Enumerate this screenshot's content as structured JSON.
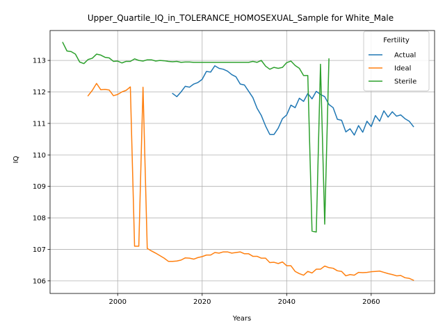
{
  "chart_data": {
    "type": "line",
    "title": "Upper_Quartile_IQ_in_TOLERANCE_HOMOSEXUAL_Sample for White_Male",
    "xlabel": "Years",
    "ylabel": "IQ",
    "xlim": [
      1984,
      2075
    ],
    "ylim": [
      105.6,
      113.95
    ],
    "xticks": [
      2000,
      2020,
      2040,
      2060
    ],
    "yticks": [
      106,
      107,
      108,
      109,
      110,
      111,
      112,
      113
    ],
    "grid": true,
    "legend": {
      "title": "Fertility",
      "position": "top-right"
    },
    "series": [
      {
        "name": "Actual",
        "color": "#1f77b4",
        "x": [
          2013,
          2014,
          2015,
          2016,
          2017,
          2018,
          2019,
          2020,
          2021,
          2022,
          2023,
          2024,
          2025,
          2026,
          2027,
          2028,
          2029,
          2030,
          2031,
          2032,
          2033,
          2034,
          2035,
          2036,
          2037,
          2038,
          2039,
          2040,
          2041,
          2042,
          2043,
          2044,
          2045,
          2046,
          2047,
          2048,
          2049,
          2050,
          2051,
          2052,
          2053,
          2054,
          2055,
          2056,
          2057,
          2058,
          2059,
          2060,
          2061,
          2062,
          2063,
          2064,
          2065,
          2066,
          2067,
          2068,
          2069,
          2070
        ],
        "y": [
          111.95,
          111.85,
          112.0,
          112.18,
          112.15,
          112.25,
          112.3,
          112.4,
          112.65,
          112.63,
          112.83,
          112.75,
          112.72,
          112.66,
          112.55,
          112.48,
          112.25,
          112.22,
          112.02,
          111.82,
          111.48,
          111.25,
          110.92,
          110.65,
          110.65,
          110.85,
          111.15,
          111.27,
          111.58,
          111.5,
          111.8,
          111.7,
          111.95,
          111.78,
          112.02,
          111.92,
          111.85,
          111.6,
          111.5,
          111.13,
          111.1,
          110.73,
          110.83,
          110.63,
          110.93,
          110.72,
          111.07,
          110.9,
          111.25,
          111.07,
          111.4,
          111.2,
          111.37,
          111.23,
          111.27,
          111.15,
          111.07,
          110.9
        ]
      },
      {
        "name": "Ideal",
        "color": "#ff7f0e",
        "x": [
          1993,
          1994,
          1995,
          1996,
          1997,
          1998,
          1999,
          2000,
          2001,
          2002,
          2003,
          2004,
          2005,
          2006,
          2007,
          2008,
          2009,
          2010,
          2011,
          2012,
          2013,
          2014,
          2015,
          2016,
          2017,
          2018,
          2019,
          2020,
          2021,
          2022,
          2023,
          2024,
          2025,
          2026,
          2027,
          2028,
          2029,
          2030,
          2031,
          2032,
          2033,
          2034,
          2035,
          2036,
          2037,
          2038,
          2039,
          2040,
          2041,
          2042,
          2043,
          2044,
          2045,
          2046,
          2047,
          2048,
          2049,
          2050,
          2051,
          2052,
          2053,
          2054,
          2055,
          2056,
          2057,
          2058,
          2059,
          2060,
          2061,
          2062,
          2063,
          2064,
          2065,
          2066,
          2067,
          2068,
          2069,
          2070
        ],
        "y": [
          111.88,
          112.05,
          112.27,
          112.07,
          112.08,
          112.06,
          111.88,
          111.92,
          112.0,
          112.05,
          112.16,
          107.1,
          107.1,
          112.15,
          107.03,
          106.95,
          106.88,
          106.8,
          106.72,
          106.62,
          106.62,
          106.63,
          106.66,
          106.73,
          106.72,
          106.69,
          106.74,
          106.77,
          106.82,
          106.82,
          106.9,
          106.88,
          106.92,
          106.92,
          106.88,
          106.9,
          106.92,
          106.86,
          106.86,
          106.78,
          106.78,
          106.72,
          106.72,
          106.58,
          106.59,
          106.55,
          106.6,
          106.48,
          106.48,
          106.3,
          106.23,
          106.18,
          106.3,
          106.25,
          106.37,
          106.37,
          106.47,
          106.42,
          106.4,
          106.32,
          106.3,
          106.16,
          106.2,
          106.18,
          106.27,
          106.26,
          106.27,
          106.29,
          106.3,
          106.31,
          106.27,
          106.23,
          106.2,
          106.16,
          106.17,
          106.1,
          106.08,
          106.02
        ]
      },
      {
        "name": "Sterile",
        "color": "#2ca02c",
        "x": [
          1987,
          1988,
          1989,
          1990,
          1991,
          1992,
          1993,
          1994,
          1995,
          1996,
          1997,
          1998,
          1999,
          2000,
          2001,
          2002,
          2003,
          2004,
          2005,
          2006,
          2007,
          2008,
          2009,
          2010,
          2011,
          2012,
          2013,
          2014,
          2015,
          2016,
          2017,
          2018,
          2019,
          2020,
          2021,
          2022,
          2023,
          2024,
          2025,
          2026,
          2027,
          2028,
          2029,
          2030,
          2031,
          2032,
          2033,
          2034,
          2035,
          2036,
          2037,
          2038,
          2039,
          2040,
          2041,
          2042,
          2043,
          2044,
          2045,
          2046,
          2047,
          2048,
          2049,
          2050
        ],
        "y": [
          113.57,
          113.3,
          113.28,
          113.2,
          112.95,
          112.9,
          113.03,
          113.07,
          113.2,
          113.17,
          113.1,
          113.08,
          112.97,
          112.98,
          112.92,
          112.97,
          112.97,
          113.05,
          113.0,
          112.98,
          113.02,
          113.02,
          112.98,
          113.0,
          112.99,
          112.97,
          112.96,
          112.97,
          112.94,
          112.95,
          112.95,
          112.94,
          112.94,
          112.94,
          112.94,
          112.94,
          112.94,
          112.94,
          112.94,
          112.94,
          112.94,
          112.94,
          112.94,
          112.94,
          112.94,
          112.97,
          112.94,
          113.0,
          112.82,
          112.72,
          112.78,
          112.75,
          112.78,
          112.93,
          112.98,
          112.84,
          112.75,
          112.52,
          112.52,
          107.58,
          107.55,
          112.88,
          107.8,
          113.05
        ]
      }
    ]
  }
}
